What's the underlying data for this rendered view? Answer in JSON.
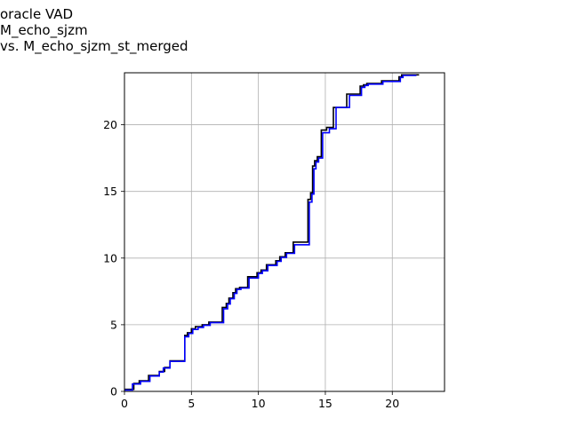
{
  "chart_data": {
    "type": "line",
    "title_lines": [
      "oracle VAD",
      "M_echo_sjzm",
      "vs. M_echo_sjzm_st_merged"
    ],
    "xlabel": "",
    "ylabel": "",
    "xlim": [
      0,
      23.9
    ],
    "ylim": [
      0,
      23.9
    ],
    "xticks": [
      0,
      5,
      10,
      15,
      20
    ],
    "yticks": [
      0,
      5,
      10,
      15,
      20
    ],
    "grid": true,
    "series": [
      {
        "color": "#000000",
        "x": [
          0,
          0.7,
          0.7,
          1.1,
          1.1,
          1.8,
          1.8,
          2.6,
          2.6,
          3.0,
          3.0,
          3.4,
          3.4,
          4.5,
          4.5,
          4.7,
          4.7,
          5.0,
          5.0,
          5.3,
          5.3,
          5.8,
          5.8,
          6.3,
          6.3,
          7.3,
          7.3,
          7.6,
          7.6,
          7.8,
          7.8,
          8.1,
          8.1,
          8.3,
          8.3,
          8.6,
          8.6,
          9.2,
          9.2,
          9.9,
          9.9,
          10.2,
          10.2,
          10.6,
          10.6,
          11.3,
          11.3,
          11.6,
          11.6,
          12.0,
          12.0,
          12.6,
          12.6,
          13.7,
          13.7,
          13.9,
          13.9,
          14.05,
          14.05,
          14.2,
          14.2,
          14.4,
          14.4,
          14.7,
          14.7,
          15.1,
          15.1,
          15.6,
          15.6,
          16.6,
          16.6,
          17.6,
          17.6,
          17.85,
          17.85,
          18.1,
          18.1,
          19.2,
          19.2,
          20.5,
          20.5,
          20.7,
          20.7,
          22.0
        ],
        "y": [
          0.15,
          0.15,
          0.6,
          0.6,
          0.8,
          0.8,
          1.2,
          1.2,
          1.5,
          1.5,
          1.8,
          1.8,
          2.3,
          2.3,
          4.2,
          4.2,
          4.4,
          4.4,
          4.7,
          4.7,
          4.85,
          4.85,
          5.0,
          5.0,
          5.2,
          5.2,
          6.3,
          6.3,
          6.6,
          6.6,
          7.0,
          7.0,
          7.4,
          7.4,
          7.7,
          7.7,
          7.8,
          7.8,
          8.6,
          8.6,
          8.9,
          8.9,
          9.1,
          9.1,
          9.5,
          9.5,
          9.8,
          9.8,
          10.1,
          10.1,
          10.4,
          10.4,
          11.2,
          11.2,
          14.4,
          14.4,
          14.9,
          14.9,
          16.9,
          16.9,
          17.3,
          17.3,
          17.6,
          17.6,
          19.6,
          19.6,
          19.8,
          19.8,
          21.3,
          21.3,
          22.3,
          22.3,
          22.9,
          22.9,
          23.0,
          23.0,
          23.1,
          23.1,
          23.3,
          23.3,
          23.6,
          23.6,
          23.75,
          23.75
        ]
      },
      {
        "color": "#0000ff",
        "x": [
          0,
          0.6,
          0.6,
          1.2,
          1.2,
          1.9,
          1.9,
          2.6,
          2.6,
          2.9,
          2.9,
          3.4,
          3.4,
          4.5,
          4.5,
          4.8,
          4.8,
          5.1,
          5.1,
          5.5,
          5.5,
          5.9,
          5.9,
          6.4,
          6.4,
          7.4,
          7.4,
          7.7,
          7.7,
          7.9,
          7.9,
          8.2,
          8.2,
          8.4,
          8.4,
          8.7,
          8.7,
          9.3,
          9.3,
          10.0,
          10.0,
          10.3,
          10.3,
          10.7,
          10.7,
          11.4,
          11.4,
          11.7,
          11.7,
          12.1,
          12.1,
          12.7,
          12.7,
          13.8,
          13.8,
          14.0,
          14.0,
          14.15,
          14.15,
          14.3,
          14.3,
          14.5,
          14.5,
          14.8,
          14.8,
          15.3,
          15.3,
          15.8,
          15.8,
          16.8,
          16.8,
          17.7,
          17.7,
          17.95,
          17.95,
          18.2,
          18.2,
          19.3,
          19.3,
          20.6,
          20.6,
          20.8,
          20.8,
          21.8
        ],
        "y": [
          0.1,
          0.1,
          0.55,
          0.55,
          0.75,
          0.75,
          1.15,
          1.15,
          1.45,
          1.45,
          1.75,
          1.75,
          2.25,
          2.25,
          4.1,
          4.1,
          4.35,
          4.35,
          4.65,
          4.65,
          4.8,
          4.8,
          4.95,
          4.95,
          5.15,
          5.15,
          6.2,
          6.2,
          6.55,
          6.55,
          6.95,
          6.95,
          7.35,
          7.35,
          7.65,
          7.65,
          7.75,
          7.75,
          8.5,
          8.5,
          8.85,
          8.85,
          9.05,
          9.05,
          9.45,
          9.45,
          9.75,
          9.75,
          10.05,
          10.05,
          10.35,
          10.35,
          11.0,
          11.0,
          14.2,
          14.2,
          14.8,
          14.8,
          16.7,
          16.7,
          17.2,
          17.2,
          17.5,
          17.5,
          19.4,
          19.4,
          19.7,
          19.7,
          21.3,
          21.3,
          22.2,
          22.2,
          22.8,
          22.8,
          22.95,
          22.95,
          23.05,
          23.05,
          23.25,
          23.25,
          23.55,
          23.55,
          23.7,
          23.7
        ]
      }
    ]
  }
}
